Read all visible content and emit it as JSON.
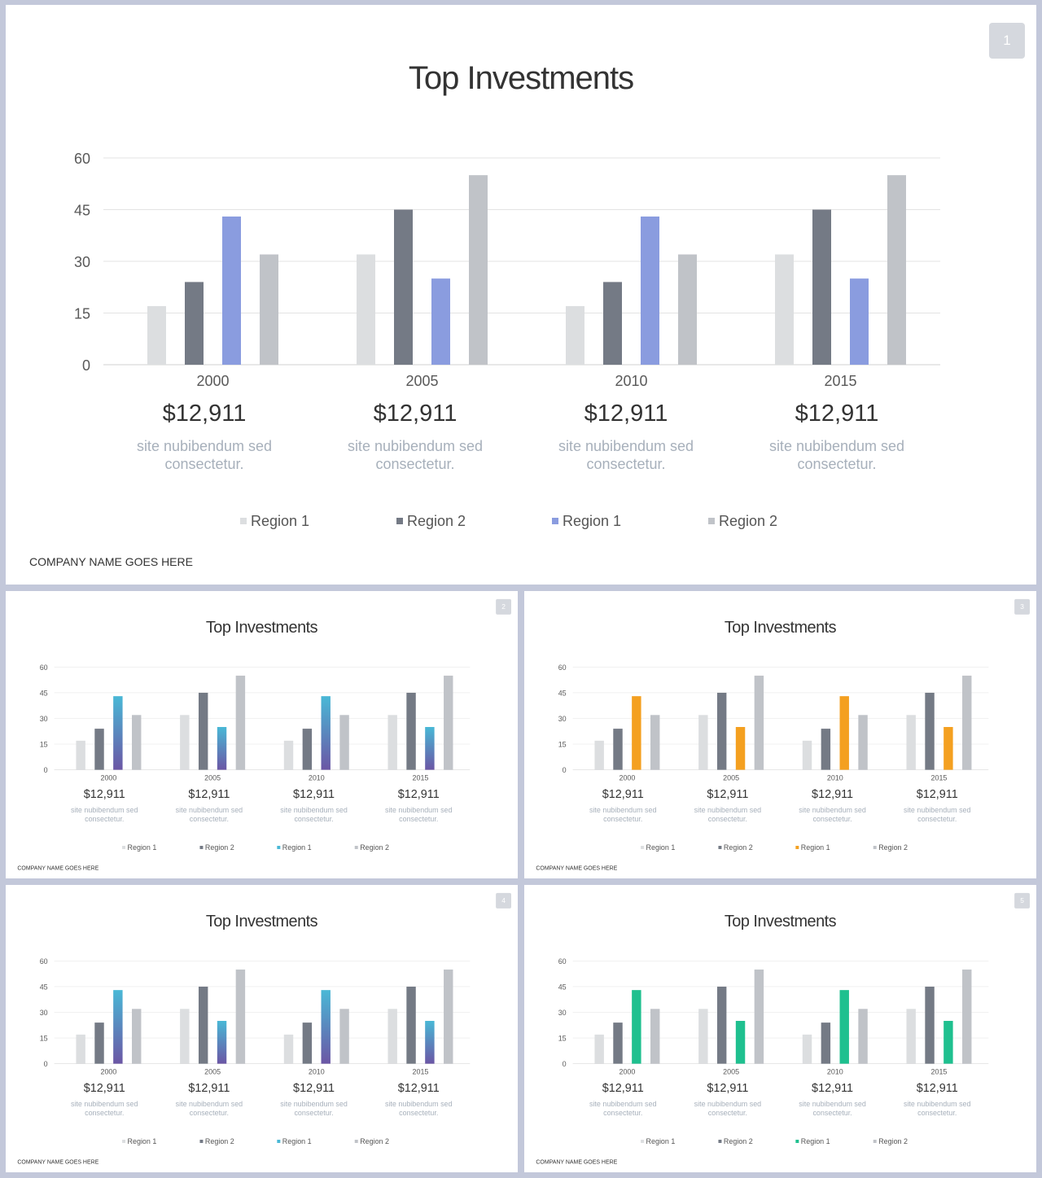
{
  "slides": [
    {
      "number": "1",
      "title": "Top Investments",
      "company": "COMPANY NAME GOES HERE",
      "accent_style": "blue-solid"
    },
    {
      "number": "2",
      "title": "Top Investments",
      "company": "COMPANY NAME GOES HERE",
      "accent_style": "teal-purple-gradient"
    },
    {
      "number": "3",
      "title": "Top Investments",
      "company": "COMPANY NAME GOES HERE",
      "accent_style": "orange-solid"
    },
    {
      "number": "4",
      "title": "Top Investments",
      "company": "COMPANY NAME GOES HERE",
      "accent_style": "teal-purple-gradient"
    },
    {
      "number": "5",
      "title": "Top Investments",
      "company": "COMPANY NAME GOES HERE",
      "accent_style": "green-solid"
    }
  ],
  "colors": {
    "series_light": "#dcdee0",
    "series_dark": "#747a85",
    "series_silver": "#c0c3c8",
    "blue-solid": "#8a9cdf",
    "orange-solid": "#f4a020",
    "green-solid": "#1fc08f",
    "gradient_top": "#49b8d6",
    "gradient_bottom": "#6b56a5",
    "gridline": "#e3e3e3",
    "axis": "#d0d0d0"
  },
  "stats": [
    {
      "value": "$12,911",
      "desc_line1": "site nubibendum sed",
      "desc_line2": "consectetur."
    },
    {
      "value": "$12,911",
      "desc_line1": "site nubibendum sed",
      "desc_line2": "consectetur."
    },
    {
      "value": "$12,911",
      "desc_line1": "site nubibendum sed",
      "desc_line2": "consectetur."
    },
    {
      "value": "$12,911",
      "desc_line1": "site nubibendum sed",
      "desc_line2": "consectetur."
    }
  ],
  "chart_data": {
    "type": "bar",
    "title": "Top Investments",
    "categories": [
      "2000",
      "2005",
      "2010",
      "2015"
    ],
    "series": [
      {
        "name": "Region 1",
        "values": [
          17,
          32,
          17,
          32
        ]
      },
      {
        "name": "Region 2",
        "values": [
          24,
          45,
          24,
          45
        ]
      },
      {
        "name": "Region 1",
        "values": [
          43,
          25,
          43,
          25
        ]
      },
      {
        "name": "Region 2",
        "values": [
          32,
          55,
          32,
          55
        ]
      }
    ],
    "ylim": [
      0,
      60
    ],
    "yticks": [
      "60",
      "45",
      "30",
      "15",
      "0"
    ],
    "grid": true,
    "legend": "bottom",
    "xlabel": "",
    "ylabel": ""
  }
}
